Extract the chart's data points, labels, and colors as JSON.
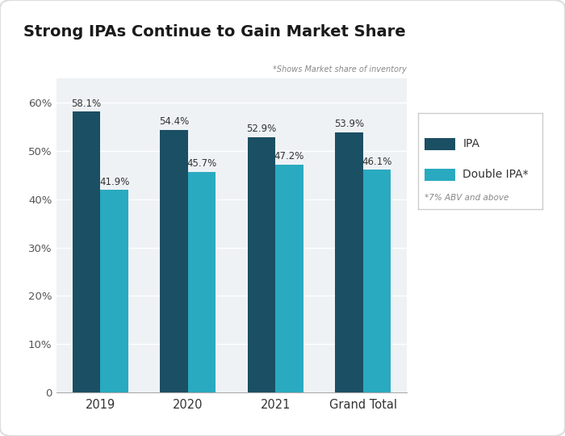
{
  "title": "Strong IPAs Continue to Gain Market Share",
  "subtitle": "*Shows Market share of inventory",
  "categories": [
    "2019",
    "2020",
    "2021",
    "Grand Total"
  ],
  "ipa_values": [
    58.1,
    54.4,
    52.9,
    53.9
  ],
  "dipa_values": [
    41.9,
    45.7,
    47.2,
    46.1
  ],
  "ipa_color": "#1b4f63",
  "dipa_color": "#29aac0",
  "ipa_label": "IPA",
  "dipa_label": "Double IPA*",
  "legend_note": "*7% ABV and above",
  "ylim": [
    0,
    65
  ],
  "yticks": [
    0,
    10,
    20,
    30,
    40,
    50,
    60
  ],
  "ytick_labels": [
    "0",
    "10%",
    "20%",
    "30%",
    "40%",
    "50%",
    "60%"
  ],
  "background_color": "#ffffff",
  "plot_bg_color": "#eef2f5",
  "bar_width": 0.32,
  "title_fontsize": 14,
  "label_fontsize": 8.5,
  "tick_fontsize": 9.5,
  "legend_fontsize": 10
}
